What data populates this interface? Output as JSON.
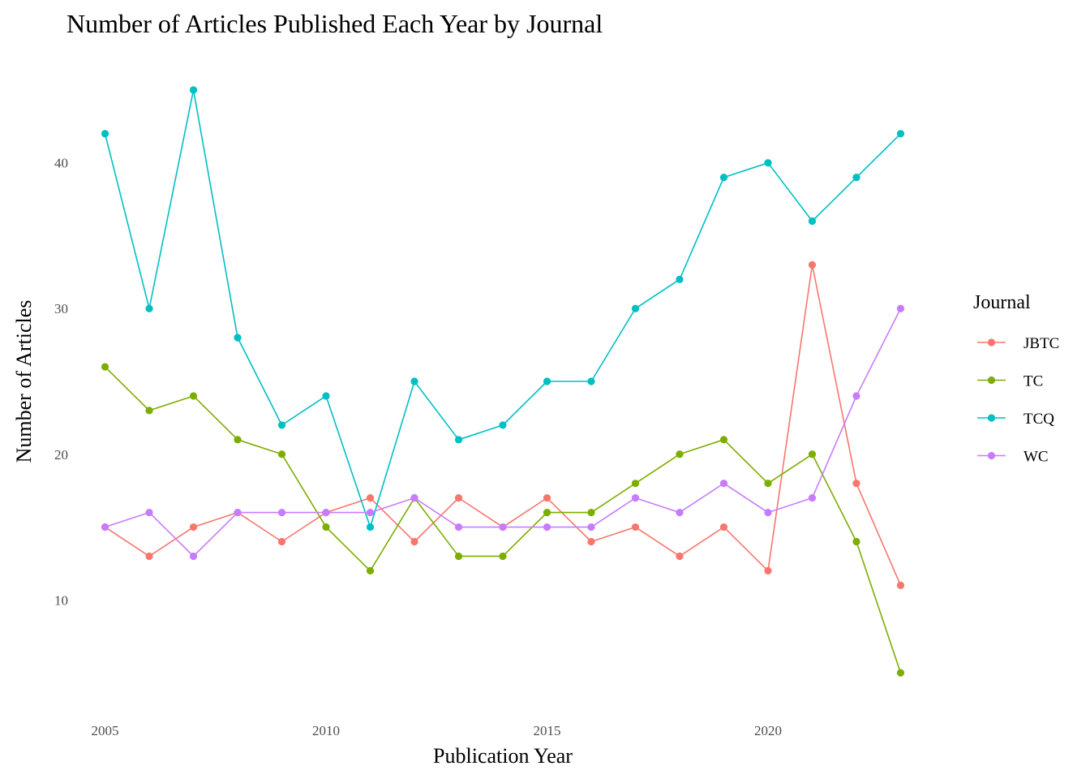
{
  "chart_data": {
    "type": "line",
    "title": "Number of Articles Published Each Year by Journal",
    "xlabel": "Publication Year",
    "ylabel": "Number of Articles",
    "x": [
      2005,
      2006,
      2007,
      2008,
      2009,
      2010,
      2011,
      2012,
      2013,
      2014,
      2015,
      2016,
      2017,
      2018,
      2019,
      2020,
      2021,
      2022,
      2023
    ],
    "xlim": [
      2004.55,
      2023.45
    ],
    "ylim": [
      3.0,
      47.0
    ],
    "x_ticks": [
      2005,
      2010,
      2015,
      2020
    ],
    "y_ticks": [
      10,
      20,
      30,
      40
    ],
    "grid": false,
    "legend": {
      "title": "Journal",
      "position": "right"
    },
    "series": [
      {
        "name": "JBTC",
        "color": "#F8766D",
        "values": [
          15,
          13,
          15,
          16,
          14,
          16,
          17,
          14,
          17,
          15,
          17,
          14,
          15,
          13,
          15,
          12,
          33,
          18,
          11
        ]
      },
      {
        "name": "TC",
        "color": "#7CAE00",
        "values": [
          26,
          23,
          24,
          21,
          20,
          15,
          12,
          17,
          13,
          13,
          16,
          16,
          18,
          20,
          21,
          18,
          20,
          14,
          5
        ]
      },
      {
        "name": "TCQ",
        "color": "#00BFC4",
        "values": [
          42,
          30,
          45,
          28,
          22,
          24,
          15,
          25,
          21,
          22,
          25,
          25,
          30,
          32,
          39,
          40,
          36,
          39,
          42
        ]
      },
      {
        "name": "WC",
        "color": "#C77CFF",
        "values": [
          15,
          16,
          13,
          16,
          16,
          16,
          16,
          17,
          15,
          15,
          15,
          15,
          17,
          16,
          18,
          16,
          17,
          24,
          30
        ]
      }
    ]
  }
}
